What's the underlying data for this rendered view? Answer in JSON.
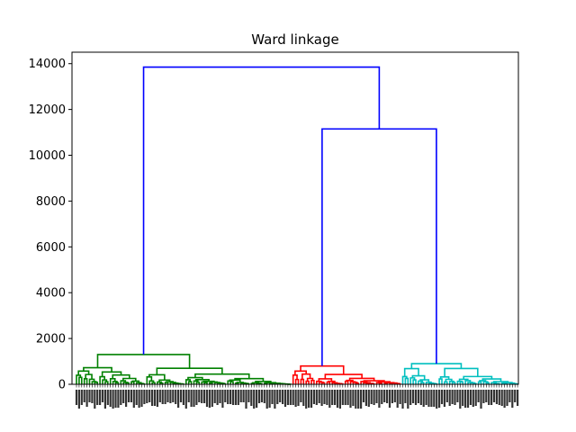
{
  "chart_data": {
    "type": "dendrogram",
    "title": "Ward linkage",
    "xlabel": "",
    "ylabel": "",
    "ylim": [
      0,
      14500
    ],
    "yticks": [
      0,
      2000,
      4000,
      6000,
      8000,
      10000,
      12000,
      14000
    ],
    "grid": false,
    "leaf_count": 170,
    "leaf_labels_legible": false,
    "cluster_colors": {
      "top": "#0000ff",
      "cluster_1": "#008000",
      "cluster_2": "#ff0000",
      "cluster_3": "#00bfbf"
    },
    "clusters": [
      {
        "name": "cluster_1",
        "leaves": 83,
        "merge_height": 1300
      },
      {
        "name": "cluster_2",
        "leaves": 42,
        "merge_height": 800
      },
      {
        "name": "cluster_3",
        "leaves": 45,
        "merge_height": 900
      }
    ],
    "top_merges": [
      {
        "left": "cluster_2",
        "right": "cluster_3",
        "height": 11150
      },
      {
        "left": "cluster_1",
        "right": "cluster_2+cluster_3",
        "height": 13850
      }
    ]
  }
}
